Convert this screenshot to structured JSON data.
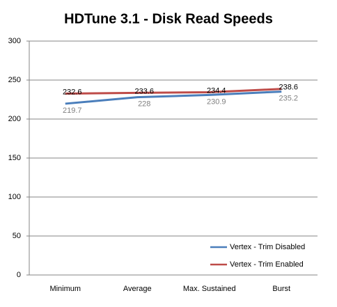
{
  "chart_data": {
    "type": "line",
    "title": "HDTune 3.1 - Disk Read Speeds",
    "categories": [
      "Minimum",
      "Average",
      "Max. Sustained",
      "Burst"
    ],
    "series": [
      {
        "name": "Vertex - Trim Disabled",
        "color": "#4a7ebb",
        "values": [
          219.7,
          228,
          230.9,
          235.2
        ]
      },
      {
        "name": "Vertex - Trim Enabled",
        "color": "#be4b48",
        "values": [
          232.6,
          233.6,
          234.4,
          238.6
        ]
      }
    ],
    "ylim": [
      0,
      300
    ],
    "yticks": [
      0,
      50,
      100,
      150,
      200,
      250,
      300
    ],
    "grid": true,
    "legend": "lower right"
  }
}
